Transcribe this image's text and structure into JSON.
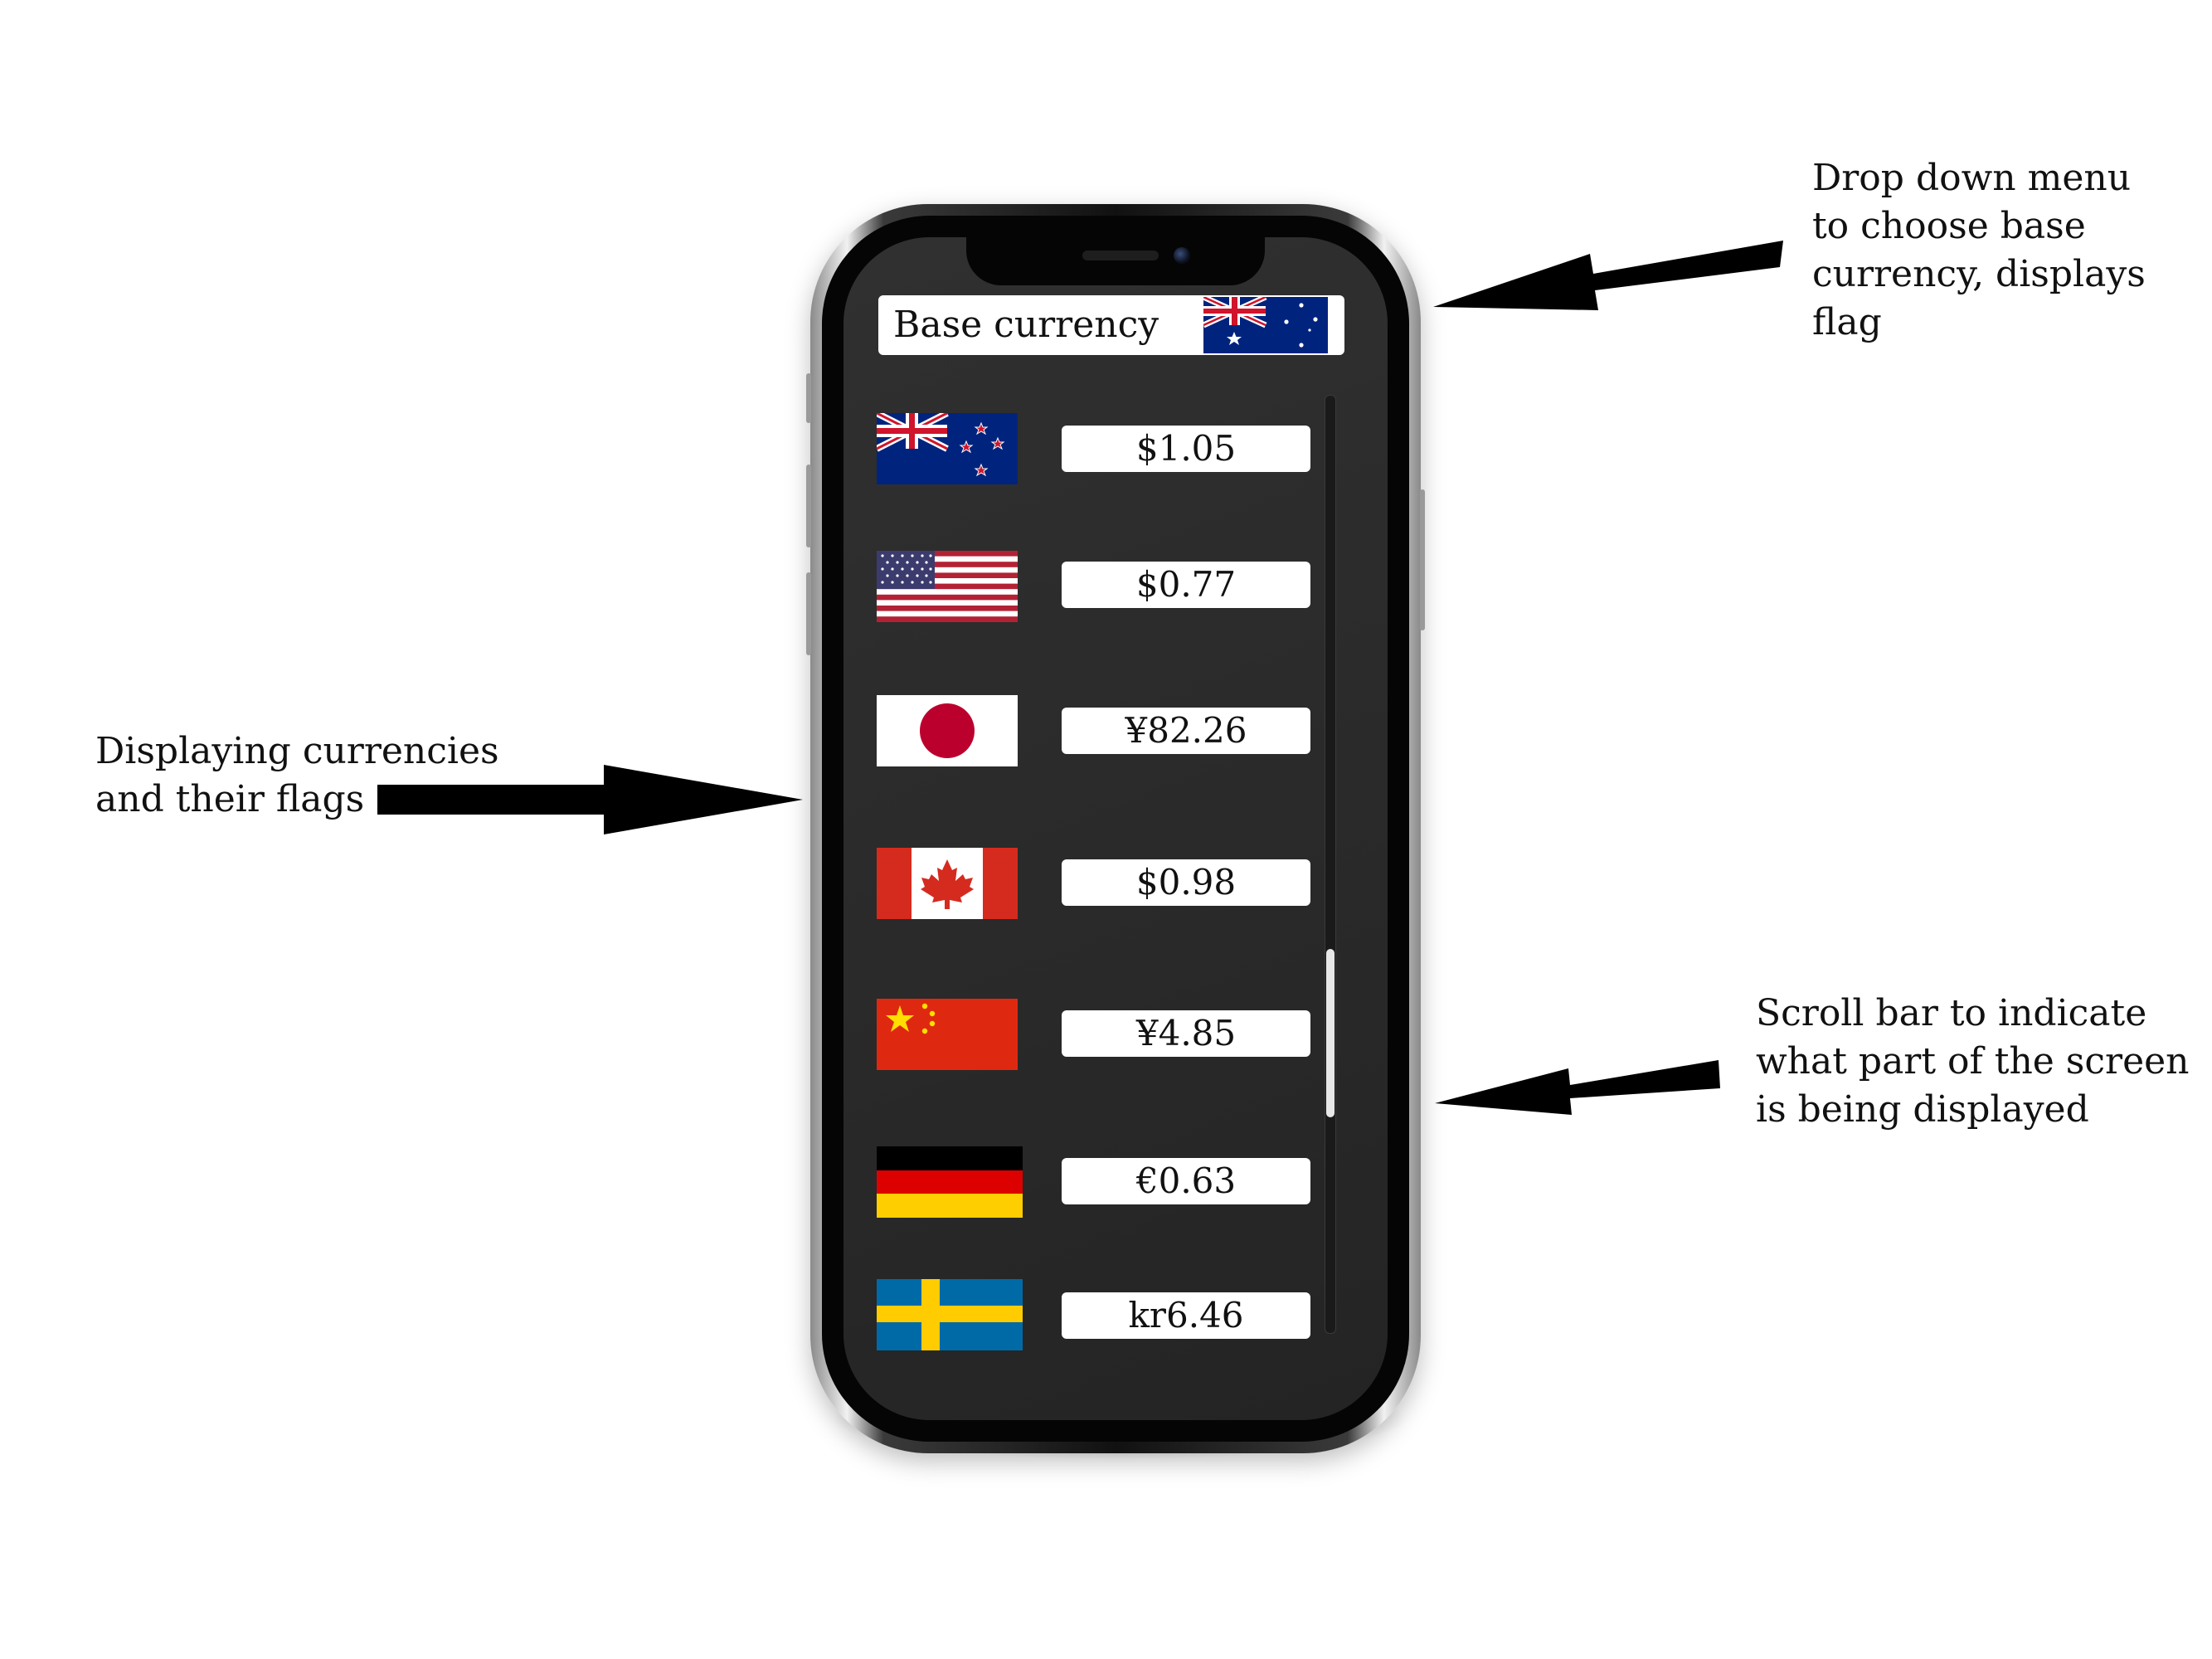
{
  "annotations": {
    "dropdown": "Drop down menu\nto choose base\ncurrency, displays\nflag",
    "list": "Displaying currencies\nand their flags",
    "scrollbar": "Scroll bar to indicate\nwhat part of the screen\nis being displayed"
  },
  "app": {
    "base_currency": {
      "label": "Base currency",
      "flag_icon": "australia-flag-icon"
    },
    "currencies": [
      {
        "flag_icon": "new-zealand-flag-icon",
        "value": "$1.05"
      },
      {
        "flag_icon": "united-states-flag-icon",
        "value": "$0.77"
      },
      {
        "flag_icon": "japan-flag-icon",
        "value": "¥82.26"
      },
      {
        "flag_icon": "canada-flag-icon",
        "value": "$0.98"
      },
      {
        "flag_icon": "china-flag-icon",
        "value": "¥4.85"
      },
      {
        "flag_icon": "germany-flag-icon",
        "value": "€0.63"
      },
      {
        "flag_icon": "sweden-flag-icon",
        "value": "kr6.46"
      }
    ],
    "scroll": {
      "position_fraction": 0.72,
      "visible_fraction": 0.18
    }
  },
  "colors": {
    "screen_bg": "#2b2b2b",
    "field_bg": "#ffffff",
    "arrow": "#000000"
  }
}
